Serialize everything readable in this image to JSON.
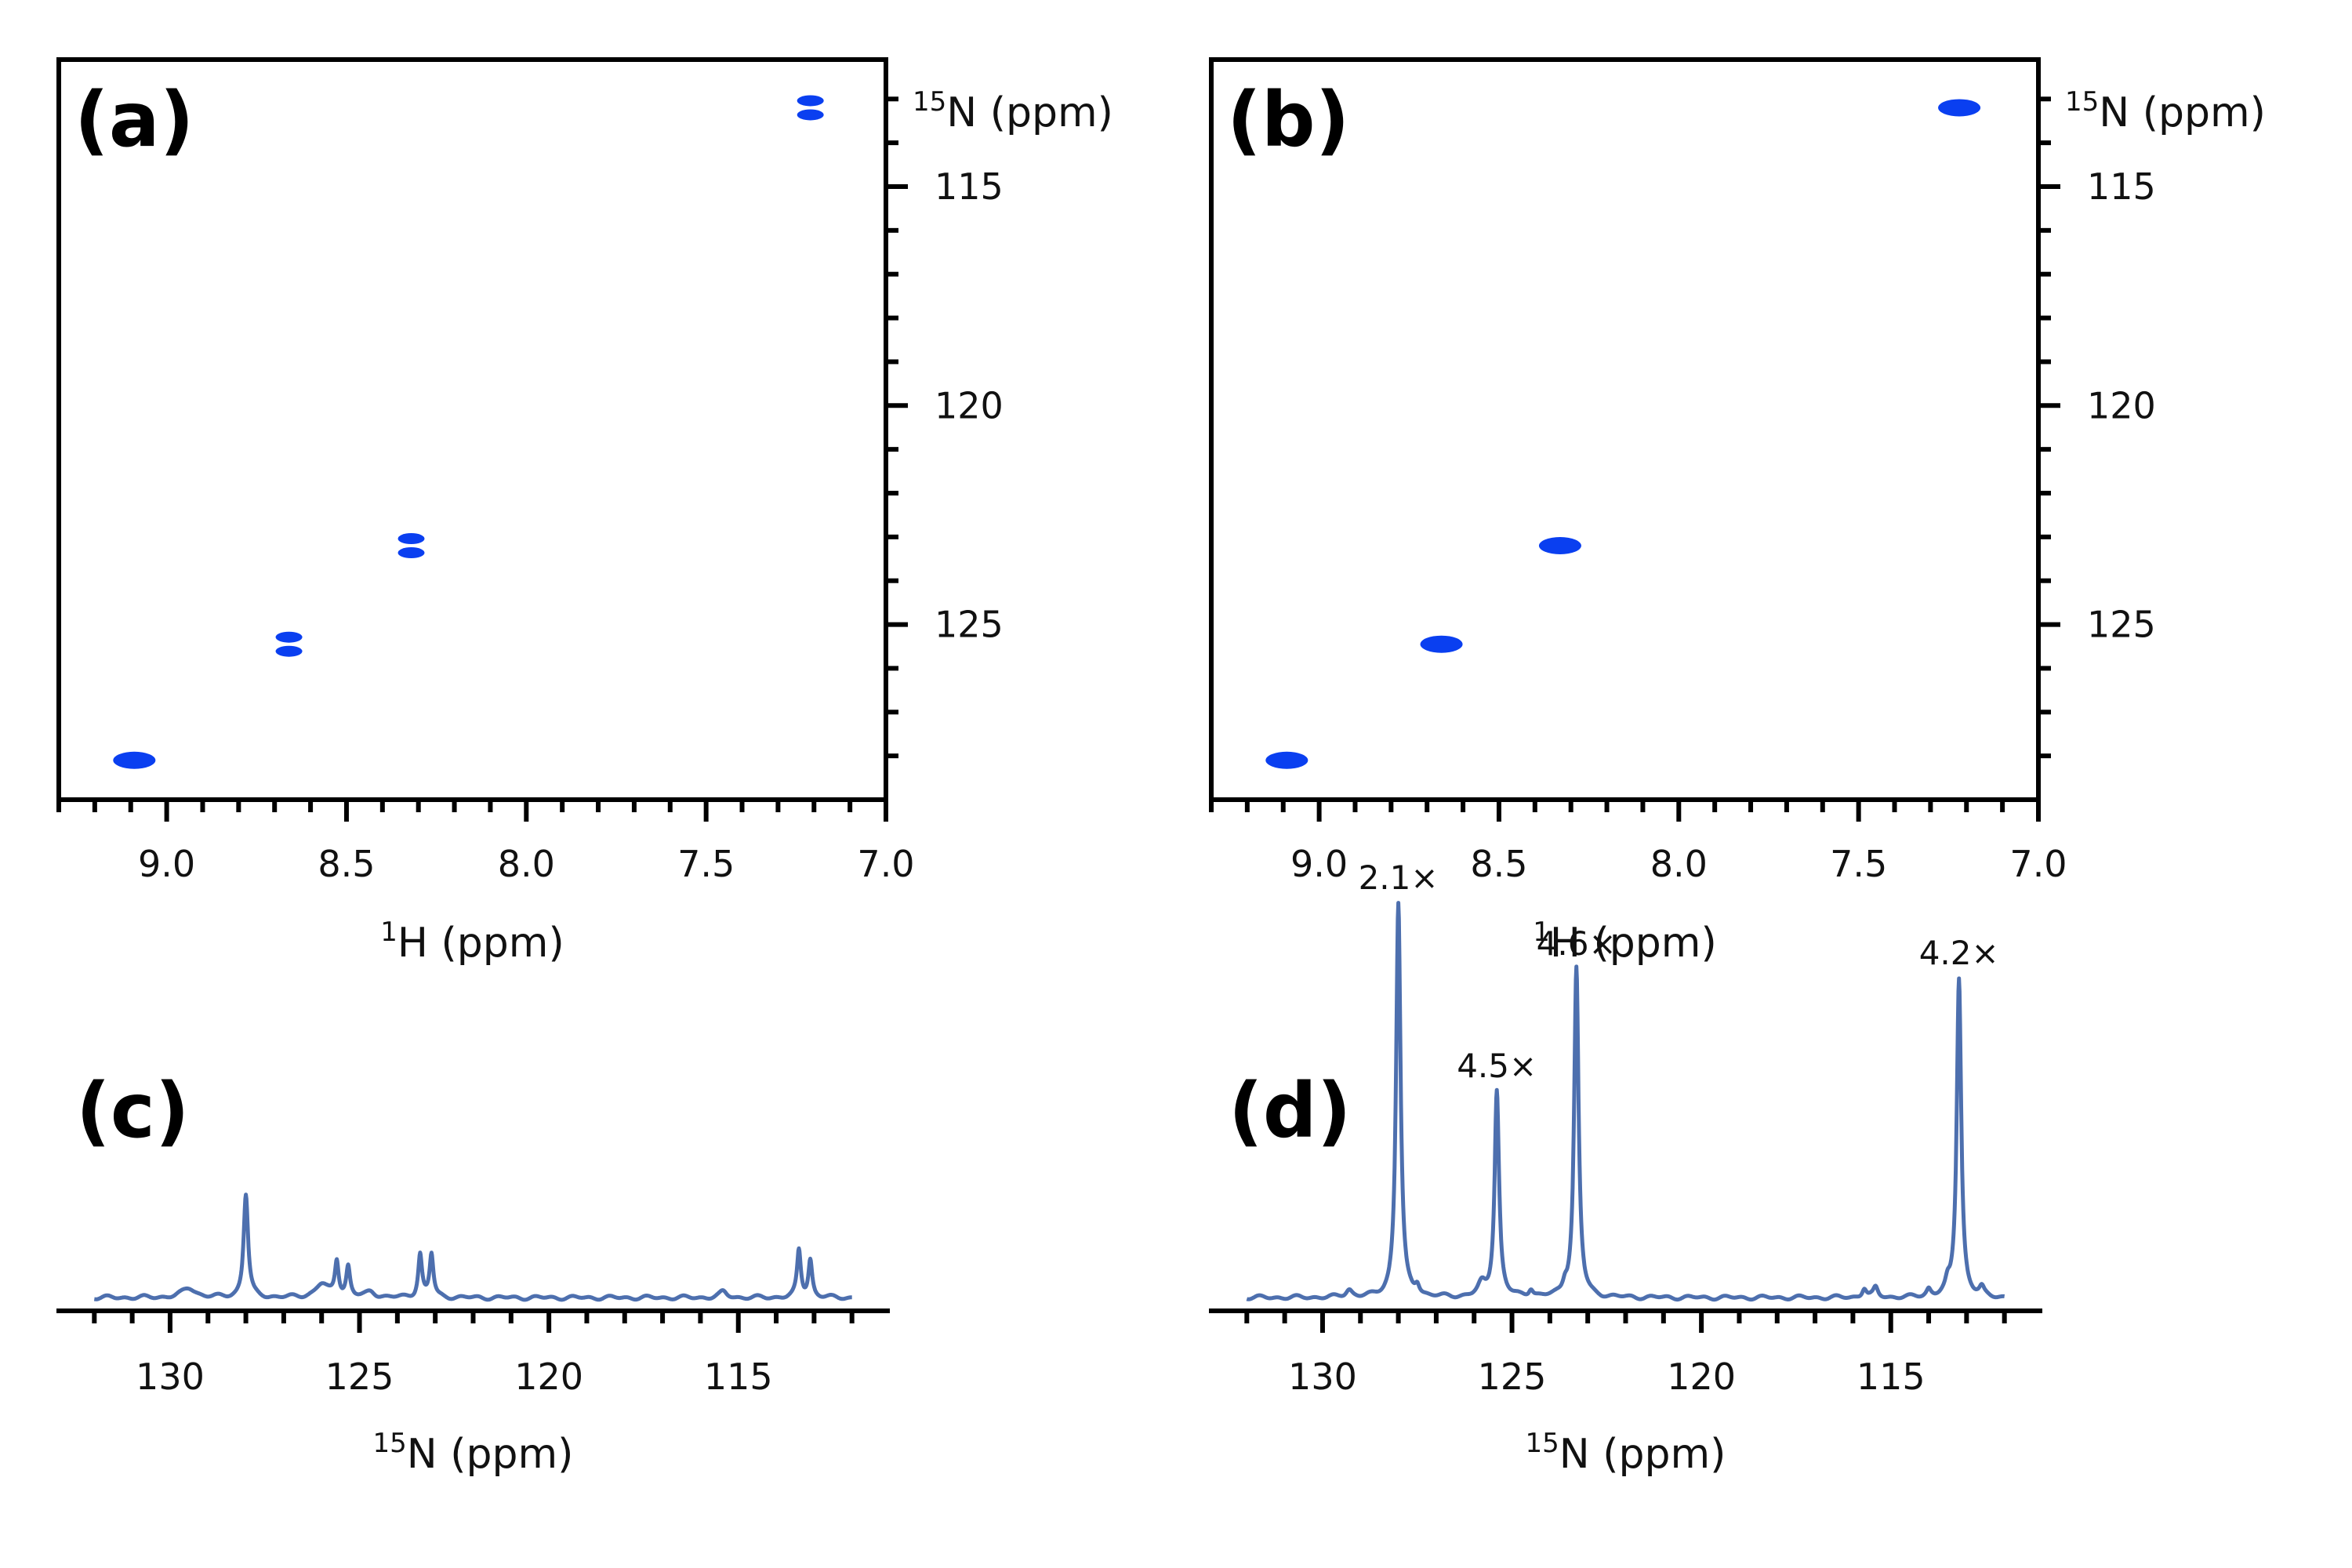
{
  "panels": {
    "a": "(a)",
    "b": "(b)",
    "c": "(c)",
    "d": "(d)"
  },
  "colors": {
    "peak": "#0a3ff0",
    "trace": "#4d6fae"
  },
  "chart_data": [
    {
      "id": "a",
      "type": "scatter",
      "xlabel": {
        "sup": "1",
        "text": "H (ppm)"
      },
      "ylabel": {
        "sup": "15",
        "text": "N (ppm)"
      },
      "xlim": [
        9.3,
        7.0
      ],
      "ylim": [
        129.0,
        112.1
      ],
      "x_ticks": [
        "9.0",
        "8.5",
        "8.0",
        "7.5",
        "7.0"
      ],
      "y_ticks": [
        "115",
        "120",
        "125"
      ],
      "peaks": [
        {
          "x": 9.09,
          "y": 128.1,
          "split": false
        },
        {
          "x": 8.66,
          "y": 125.45,
          "split": true
        },
        {
          "x": 8.32,
          "y": 123.2,
          "split": true
        },
        {
          "x": 7.21,
          "y": 113.2,
          "split": true
        }
      ]
    },
    {
      "id": "b",
      "type": "scatter",
      "xlabel": {
        "sup": "1",
        "text": "H (ppm)"
      },
      "ylabel": {
        "sup": "15",
        "text": "N (ppm)"
      },
      "xlim": [
        9.3,
        7.0
      ],
      "ylim": [
        129.0,
        112.1
      ],
      "x_ticks": [
        "9.0",
        "8.5",
        "8.0",
        "7.5",
        "7.0"
      ],
      "y_ticks": [
        "115",
        "120",
        "125"
      ],
      "peaks": [
        {
          "x": 9.09,
          "y": 128.1,
          "split": false
        },
        {
          "x": 8.66,
          "y": 125.45,
          "split": false
        },
        {
          "x": 8.33,
          "y": 123.2,
          "split": false
        },
        {
          "x": 7.22,
          "y": 113.2,
          "split": false
        }
      ]
    },
    {
      "id": "c",
      "type": "line",
      "xlabel": {
        "sup": "15",
        "text": "N (ppm)"
      },
      "xlim": [
        133,
        111
      ],
      "x_ticks": [
        "130",
        "125",
        "120",
        "115"
      ],
      "baseline": 0.02,
      "peaks": [
        {
          "x": 129.5,
          "h": 0.05,
          "w": 0.22
        },
        {
          "x": 128.0,
          "h": 0.55,
          "w": 0.07
        },
        {
          "x": 126.0,
          "h": 0.07,
          "w": 0.2
        },
        {
          "x": 125.6,
          "h": 0.19,
          "w": 0.06
        },
        {
          "x": 125.3,
          "h": 0.16,
          "w": 0.06
        },
        {
          "x": 124.7,
          "h": 0.03,
          "w": 0.15
        },
        {
          "x": 123.4,
          "h": 0.23,
          "w": 0.06
        },
        {
          "x": 123.1,
          "h": 0.23,
          "w": 0.06
        },
        {
          "x": 115.4,
          "h": 0.03,
          "w": 0.12
        },
        {
          "x": 113.4,
          "h": 0.25,
          "w": 0.06
        },
        {
          "x": 113.1,
          "h": 0.2,
          "w": 0.06
        }
      ],
      "annotations": []
    },
    {
      "id": "d",
      "type": "line",
      "xlabel": {
        "sup": "15",
        "text": "N (ppm)"
      },
      "xlim": [
        133,
        111
      ],
      "x_ticks": [
        "130",
        "125",
        "120",
        "115"
      ],
      "baseline": 0.02,
      "peaks": [
        {
          "x": 129.3,
          "h": 0.04,
          "w": 0.1
        },
        {
          "x": 128.0,
          "h": 2.1,
          "w": 0.07
        },
        {
          "x": 127.5,
          "h": 0.05,
          "w": 0.07
        },
        {
          "x": 125.8,
          "h": 0.06,
          "w": 0.12
        },
        {
          "x": 125.4,
          "h": 1.1,
          "w": 0.07
        },
        {
          "x": 124.5,
          "h": 0.04,
          "w": 0.07
        },
        {
          "x": 123.6,
          "h": 0.05,
          "w": 0.07
        },
        {
          "x": 123.3,
          "h": 1.75,
          "w": 0.07
        },
        {
          "x": 115.7,
          "h": 0.05,
          "w": 0.07
        },
        {
          "x": 115.4,
          "h": 0.05,
          "w": 0.07
        },
        {
          "x": 114.0,
          "h": 0.04,
          "w": 0.07
        },
        {
          "x": 113.5,
          "h": 0.05,
          "w": 0.07
        },
        {
          "x": 113.2,
          "h": 1.7,
          "w": 0.07
        },
        {
          "x": 112.6,
          "h": 0.04,
          "w": 0.07
        }
      ],
      "annotations": [
        {
          "text": "2.1×",
          "x": 128.0,
          "y": 2.1
        },
        {
          "text": "4.5×",
          "x": 125.4,
          "y": 1.1
        },
        {
          "text": "4.6×",
          "x": 123.3,
          "y": 1.75
        },
        {
          "text": "4.2×",
          "x": 113.2,
          "y": 1.7
        }
      ]
    }
  ]
}
